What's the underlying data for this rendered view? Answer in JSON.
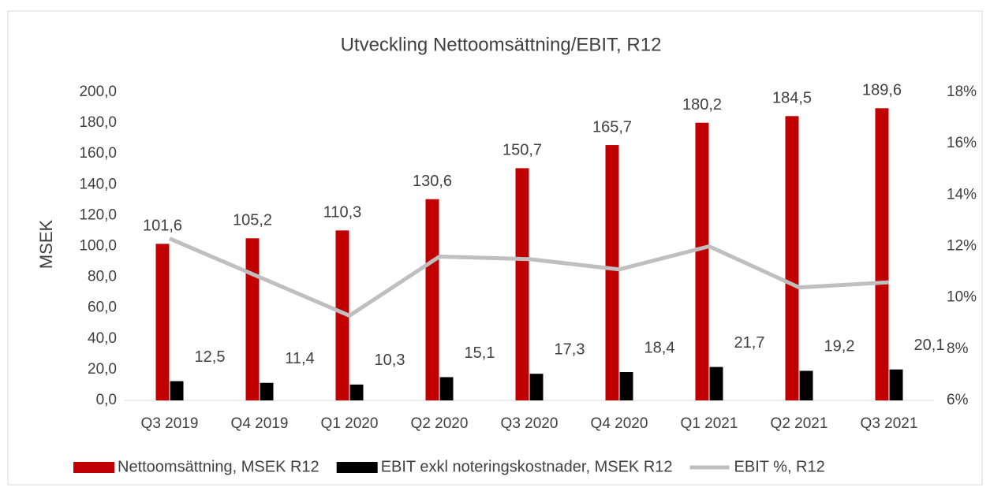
{
  "chart_data": {
    "type": "bar_line",
    "title": "Utveckling Nettoomsättning/EBIT, R12",
    "ylabel": "MSEK",
    "categories": [
      "Q3 2019",
      "Q4 2019",
      "Q1 2020",
      "Q2 2020",
      "Q3 2020",
      "Q4 2020",
      "Q1 2021",
      "Q2 2021",
      "Q3 2021"
    ],
    "series": [
      {
        "name": "Nettoomsättning, MSEK R12",
        "color": "#c00000",
        "type": "bar",
        "values": [
          101.6,
          105.2,
          110.3,
          130.6,
          150.7,
          165.7,
          180.2,
          184.5,
          189.6
        ],
        "value_labels": [
          "101,6",
          "105,2",
          "110,3",
          "130,6",
          "150,7",
          "165,7",
          "180,2",
          "184,5",
          "189,6"
        ]
      },
      {
        "name": "EBIT exkl noteringskostnader, MSEK R12",
        "color": "#000000",
        "type": "bar",
        "values": [
          12.5,
          11.4,
          10.3,
          15.1,
          17.3,
          18.4,
          21.7,
          19.2,
          20.1
        ],
        "value_labels": [
          "12,5",
          "11,4",
          "10,3",
          "15,1",
          "17,3",
          "18,4",
          "21,7",
          "19,2",
          "20,1"
        ]
      },
      {
        "name": "EBIT %, R12",
        "color": "#bfbfbf",
        "type": "line",
        "axis": "y2",
        "values": [
          12.3,
          10.8,
          9.3,
          11.6,
          11.5,
          11.1,
          12.0,
          10.4,
          10.6
        ]
      }
    ],
    "ylim": [
      0,
      200
    ],
    "yticks": [
      {
        "value": 0,
        "label": "0,0"
      },
      {
        "value": 20,
        "label": "20,0"
      },
      {
        "value": 40,
        "label": "40,0"
      },
      {
        "value": 60,
        "label": "60,0"
      },
      {
        "value": 80,
        "label": "80,0"
      },
      {
        "value": 100,
        "label": "100,0"
      },
      {
        "value": 120,
        "label": "120,0"
      },
      {
        "value": 140,
        "label": "140,0"
      },
      {
        "value": 160,
        "label": "160,0"
      },
      {
        "value": 180,
        "label": "180,0"
      },
      {
        "value": 200,
        "label": "200,0"
      }
    ],
    "y2lim": [
      6,
      18
    ],
    "y2ticks": [
      {
        "value": 6,
        "label": "6%"
      },
      {
        "value": 8,
        "label": "8%"
      },
      {
        "value": 10,
        "label": "10%"
      },
      {
        "value": 12,
        "label": "12%"
      },
      {
        "value": 14,
        "label": "14%"
      },
      {
        "value": 16,
        "label": "16%"
      },
      {
        "value": 18,
        "label": "18%"
      }
    ],
    "grid": false,
    "legend": "bottom"
  }
}
